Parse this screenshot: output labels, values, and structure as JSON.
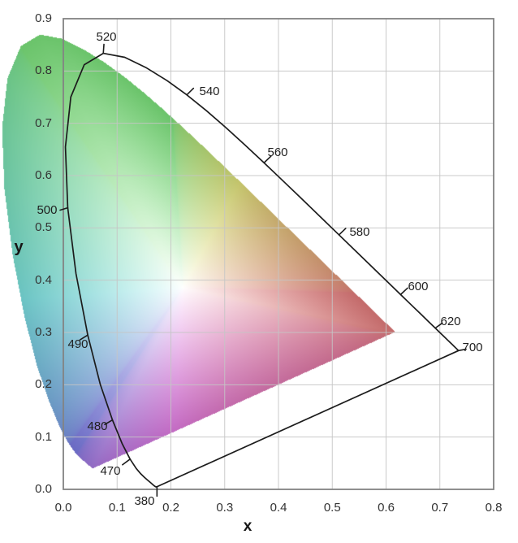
{
  "style": {
    "background": "#ffffff",
    "grid_color": "#c5c5c5",
    "plot_border_color": "#838383",
    "locus_line_color": "#1c1c1c",
    "tick_text_color": "#333333",
    "axis_title_color": "#161616",
    "wavelength_text_color": "#1f1f1f"
  },
  "chart_data": {
    "type": "area",
    "title": "",
    "subtitle": "",
    "xlabel": "x",
    "ylabel": "y",
    "xlim": [
      0.0,
      0.8
    ],
    "ylim": [
      0.0,
      0.9
    ],
    "grid": true,
    "legend": false,
    "x_tick_labels": [
      "0.0",
      "0.1",
      "0.2",
      "0.3",
      "0.4",
      "0.5",
      "0.6",
      "0.7",
      "0.8"
    ],
    "y_tick_labels": [
      "0.0",
      "0.1",
      "0.2",
      "0.3",
      "0.4",
      "0.5",
      "0.6",
      "0.7",
      "0.8",
      "0.9"
    ],
    "white_point": [
      0.34,
      0.35
    ],
    "spectral_locus_xy": [
      [
        380,
        0.1741,
        0.005
      ],
      [
        385,
        0.174,
        0.005
      ],
      [
        390,
        0.1738,
        0.0049
      ],
      [
        395,
        0.1736,
        0.0049
      ],
      [
        400,
        0.1733,
        0.0048
      ],
      [
        405,
        0.173,
        0.0048
      ],
      [
        410,
        0.1726,
        0.0048
      ],
      [
        415,
        0.1721,
        0.0048
      ],
      [
        420,
        0.1714,
        0.0051
      ],
      [
        425,
        0.1703,
        0.0058
      ],
      [
        430,
        0.1689,
        0.0069
      ],
      [
        435,
        0.1669,
        0.0086
      ],
      [
        440,
        0.1644,
        0.0109
      ],
      [
        445,
        0.1611,
        0.0138
      ],
      [
        450,
        0.1566,
        0.0177
      ],
      [
        455,
        0.151,
        0.0227
      ],
      [
        460,
        0.144,
        0.0297
      ],
      [
        465,
        0.1355,
        0.0399
      ],
      [
        470,
        0.1241,
        0.0578
      ],
      [
        475,
        0.1096,
        0.0868
      ],
      [
        480,
        0.0913,
        0.1327
      ],
      [
        485,
        0.0687,
        0.2007
      ],
      [
        490,
        0.0454,
        0.295
      ],
      [
        495,
        0.0235,
        0.4127
      ],
      [
        500,
        0.0082,
        0.5384
      ],
      [
        505,
        0.0039,
        0.6548
      ],
      [
        510,
        0.0139,
        0.7502
      ],
      [
        515,
        0.0389,
        0.812
      ],
      [
        520,
        0.0743,
        0.8338
      ],
      [
        525,
        0.1142,
        0.8262
      ],
      [
        530,
        0.1547,
        0.8059
      ],
      [
        535,
        0.1929,
        0.7816
      ],
      [
        540,
        0.2296,
        0.7543
      ],
      [
        545,
        0.2658,
        0.7243
      ],
      [
        550,
        0.3016,
        0.6923
      ],
      [
        555,
        0.3373,
        0.6589
      ],
      [
        560,
        0.3731,
        0.6245
      ],
      [
        565,
        0.4087,
        0.5896
      ],
      [
        570,
        0.4441,
        0.5547
      ],
      [
        575,
        0.4788,
        0.5202
      ],
      [
        580,
        0.5125,
        0.4866
      ],
      [
        585,
        0.5448,
        0.4544
      ],
      [
        590,
        0.5752,
        0.4242
      ],
      [
        595,
        0.6029,
        0.3965
      ],
      [
        600,
        0.627,
        0.3725
      ],
      [
        605,
        0.6482,
        0.3514
      ],
      [
        610,
        0.6658,
        0.334
      ],
      [
        615,
        0.6801,
        0.3197
      ],
      [
        620,
        0.6915,
        0.3083
      ],
      [
        625,
        0.7006,
        0.2993
      ],
      [
        630,
        0.7079,
        0.292
      ],
      [
        635,
        0.714,
        0.2859
      ],
      [
        640,
        0.719,
        0.2809
      ],
      [
        645,
        0.723,
        0.277
      ],
      [
        650,
        0.726,
        0.274
      ],
      [
        660,
        0.73,
        0.27
      ],
      [
        670,
        0.732,
        0.268
      ],
      [
        680,
        0.7334,
        0.2666
      ],
      [
        690,
        0.7344,
        0.2656
      ],
      [
        700,
        0.7347,
        0.2653
      ]
    ],
    "wavelength_callouts": [
      {
        "text": "380",
        "anchor": [
          0.1741,
          0.004
        ],
        "tick_end": [
          0.1741,
          -0.013
        ],
        "text_pos": [
          0.1509,
          -0.024
        ]
      },
      {
        "text": "470",
        "anchor": [
          0.1241,
          0.0578
        ],
        "tick_end": [
          0.11,
          0.047
        ],
        "text_pos": [
          0.0875,
          0.0342
        ]
      },
      {
        "text": "480",
        "anchor": [
          0.0913,
          0.1327
        ],
        "tick_end": [
          0.077,
          0.124
        ],
        "text_pos": [
          0.0634,
          0.1197
        ]
      },
      {
        "text": "490",
        "anchor": [
          0.0454,
          0.295
        ],
        "tick_end": [
          0.031,
          0.286
        ],
        "text_pos": [
          0.0272,
          0.2767
        ]
      },
      {
        "text": "500",
        "anchor": [
          0.0082,
          0.5384
        ],
        "tick_end": [
          -0.006,
          0.534
        ],
        "text_pos": [
          -0.0302,
          0.5332
        ]
      },
      {
        "text": "520",
        "anchor": [
          0.0743,
          0.8338
        ],
        "tick_end": [
          0.0755,
          0.851
        ],
        "text_pos": [
          0.08,
          0.8643
        ]
      },
      {
        "text": "540",
        "anchor": [
          0.2296,
          0.7543
        ],
        "tick_end": [
          0.242,
          0.767
        ],
        "text_pos": [
          0.2717,
          0.7602
        ]
      },
      {
        "text": "560",
        "anchor": [
          0.3731,
          0.6245
        ],
        "tick_end": [
          0.386,
          0.637
        ],
        "text_pos": [
          0.3985,
          0.6436
        ]
      },
      {
        "text": "580",
        "anchor": [
          0.5125,
          0.4866
        ],
        "tick_end": [
          0.525,
          0.499
        ],
        "text_pos": [
          0.5509,
          0.4913
        ]
      },
      {
        "text": "600",
        "anchor": [
          0.627,
          0.3725
        ],
        "tick_end": [
          0.64,
          0.385
        ],
        "text_pos": [
          0.6596,
          0.3871
        ]
      },
      {
        "text": "620",
        "anchor": [
          0.6915,
          0.3083
        ],
        "tick_end": [
          0.7045,
          0.318
        ],
        "text_pos": [
          0.72,
          0.3202
        ]
      },
      {
        "text": "700",
        "anchor": [
          0.7347,
          0.2653
        ],
        "tick_end": [
          0.7487,
          0.268
        ],
        "text_pos": [
          0.7608,
          0.2705
        ]
      }
    ]
  }
}
